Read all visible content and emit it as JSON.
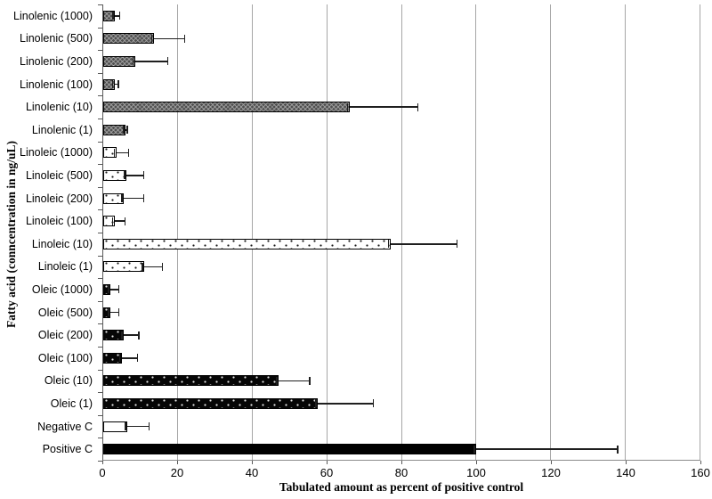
{
  "figure": {
    "background": "#ffffff"
  },
  "colors": {
    "gridline": "#a6a6a6",
    "axis_line": "#595959",
    "error_bar": "#1f1f1f",
    "text": "#000000",
    "linolenic_fill": "#4f4f4f",
    "linoleic_fill": "#ffffff",
    "oleic_fill": "#000000",
    "negative_fill": "#ffffff",
    "positive_fill": "#000000"
  },
  "chart_data": {
    "type": "bar",
    "orientation": "horizontal",
    "title": "",
    "xlabel": "Tabulated amount as percent of positive control",
    "ylabel": "Fatty acid (conncentration in ng/uL)",
    "xlim": [
      0,
      160
    ],
    "xticks": [
      0,
      20,
      40,
      60,
      80,
      100,
      120,
      140,
      160
    ],
    "grid": "vertical gridlines at every 20, light gray",
    "legend": "none",
    "error_bars": "asymmetric, cap at bar end and at upper value",
    "bar_patterns": {
      "linolenic": "dark gray crosshatch with white dots",
      "linoleic": "white with black dots",
      "oleic": "black with white dots",
      "negative": "plain white, black outline",
      "positive": "solid black"
    },
    "rows": [
      {
        "label": "Linolenic (1000)",
        "group": "linolenic",
        "value": 3.2,
        "error_high": 4.6
      },
      {
        "label": "Linolenic (500)",
        "group": "linolenic",
        "value": 13.5,
        "error_high": 22
      },
      {
        "label": "Linolenic (200)",
        "group": "linolenic",
        "value": 8.5,
        "error_high": 17.5
      },
      {
        "label": "Linolenic (100)",
        "group": "linolenic",
        "value": 3,
        "error_high": 4.2
      },
      {
        "label": "Linolenic (10)",
        "group": "linolenic",
        "value": 66,
        "error_high": 84.5
      },
      {
        "label": "Linolenic (1)",
        "group": "linolenic",
        "value": 6,
        "error_high": 6.6
      },
      {
        "label": "Linoleic (1000)",
        "group": "linoleic",
        "value": 3.5,
        "error_high": 7
      },
      {
        "label": "Linoleic (500)",
        "group": "linoleic",
        "value": 6.3,
        "error_high": 11
      },
      {
        "label": "Linoleic (200)",
        "group": "linoleic",
        "value": 5.5,
        "error_high": 11
      },
      {
        "label": "Linoleic (100)",
        "group": "linoleic",
        "value": 3,
        "error_high": 6
      },
      {
        "label": "Linoleic (10)",
        "group": "linoleic",
        "value": 77,
        "error_high": 95
      },
      {
        "label": "Linoleic (1)",
        "group": "linoleic",
        "value": 11,
        "error_high": 16
      },
      {
        "label": "Oleic (1000)",
        "group": "oleic",
        "value": 2,
        "error_high": 4.4
      },
      {
        "label": "Oleic (500)",
        "group": "oleic",
        "value": 2,
        "error_high": 4.4
      },
      {
        "label": "Oleic (200)",
        "group": "oleic",
        "value": 5.5,
        "error_high": 9.7
      },
      {
        "label": "Oleic (100)",
        "group": "oleic",
        "value": 5,
        "error_high": 9.3
      },
      {
        "label": "Oleic (10)",
        "group": "oleic",
        "value": 47,
        "error_high": 55.5
      },
      {
        "label": "Oleic (1)",
        "group": "oleic",
        "value": 57.5,
        "error_high": 72.5
      },
      {
        "label": "Negative C",
        "group": "negative",
        "value": 6.5,
        "error_high": 12.5
      },
      {
        "label": "Positive C",
        "group": "positive",
        "value": 100,
        "error_high": 138
      }
    ]
  }
}
